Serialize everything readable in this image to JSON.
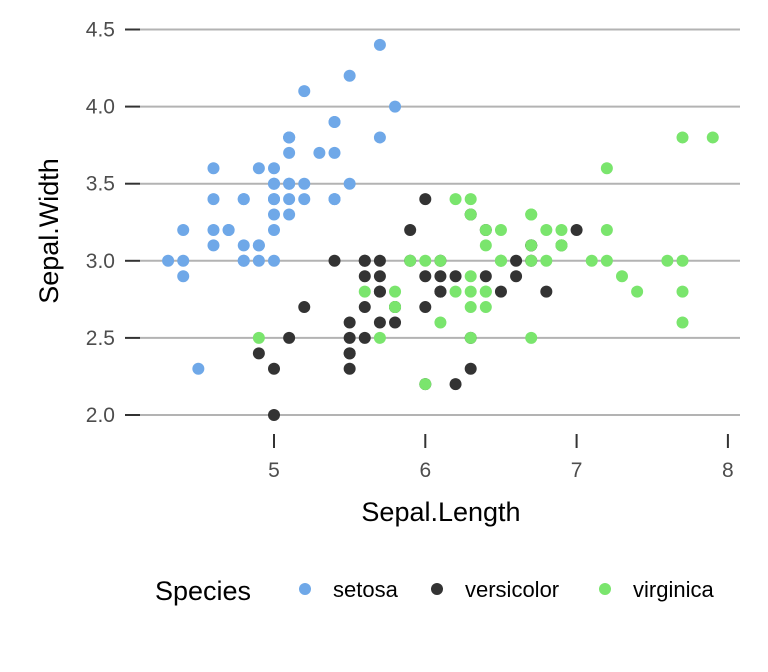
{
  "chart_data": {
    "type": "scatter",
    "title": "",
    "xlabel": "Sepal.Length",
    "ylabel": "Sepal.Width",
    "xlim": [
      4.2,
      8.05
    ],
    "ylim": [
      1.95,
      4.55
    ],
    "xticks": [
      5,
      6,
      7,
      8
    ],
    "yticks": [
      2.0,
      2.5,
      3.0,
      3.5,
      4.0,
      4.5
    ],
    "xtick_labels": [
      "5",
      "6",
      "7",
      "8"
    ],
    "ytick_labels": [
      "2.0",
      "2.5",
      "3.0",
      "3.5",
      "4.0",
      "4.5"
    ],
    "grid": "horizontal-major",
    "legend_position": "bottom",
    "legend_title": "Species",
    "series": [
      {
        "name": "setosa",
        "color": "#6fa8e8",
        "x": [
          5.1,
          4.9,
          4.7,
          4.6,
          5.0,
          5.4,
          4.6,
          5.0,
          4.4,
          4.9,
          5.4,
          4.8,
          4.8,
          4.3,
          5.8,
          5.7,
          5.4,
          5.1,
          5.7,
          5.1,
          5.4,
          5.1,
          4.6,
          5.1,
          4.8,
          5.0,
          5.0,
          5.2,
          5.2,
          4.7,
          4.8,
          5.4,
          5.2,
          5.5,
          4.9,
          5.0,
          5.5,
          4.9,
          4.4,
          5.1,
          5.0,
          4.5,
          4.4,
          5.0,
          5.1,
          4.8,
          5.1,
          4.6,
          5.3,
          5.0
        ],
        "y": [
          3.5,
          3.0,
          3.2,
          3.1,
          3.6,
          3.9,
          3.4,
          3.4,
          2.9,
          3.1,
          3.7,
          3.4,
          3.0,
          3.0,
          4.0,
          4.4,
          3.9,
          3.5,
          3.8,
          3.8,
          3.4,
          3.7,
          3.6,
          3.3,
          3.4,
          3.0,
          3.4,
          3.5,
          3.4,
          3.2,
          3.1,
          3.4,
          4.1,
          4.2,
          3.1,
          3.2,
          3.5,
          3.6,
          3.0,
          3.4,
          3.5,
          2.3,
          3.2,
          3.5,
          3.8,
          3.0,
          3.8,
          3.2,
          3.7,
          3.3
        ]
      },
      {
        "name": "versicolor",
        "color": "#333333",
        "x": [
          7.0,
          6.4,
          6.9,
          5.5,
          6.5,
          5.7,
          6.3,
          4.9,
          6.6,
          5.2,
          5.0,
          5.9,
          6.0,
          6.1,
          5.6,
          6.7,
          5.6,
          5.8,
          6.2,
          5.6,
          5.9,
          6.1,
          6.3,
          6.1,
          6.4,
          6.6,
          6.8,
          6.7,
          6.0,
          5.7,
          5.5,
          5.5,
          5.8,
          6.0,
          5.4,
          6.0,
          6.7,
          6.3,
          5.6,
          5.5,
          5.5,
          6.1,
          5.8,
          5.0,
          5.6,
          5.7,
          5.7,
          6.2,
          5.1,
          5.7
        ],
        "y": [
          3.2,
          3.2,
          3.1,
          2.3,
          2.8,
          2.8,
          3.3,
          2.4,
          2.9,
          2.7,
          2.0,
          3.0,
          2.2,
          2.9,
          2.9,
          3.1,
          3.0,
          2.7,
          2.2,
          2.5,
          3.2,
          2.8,
          2.5,
          2.8,
          2.9,
          3.0,
          2.8,
          3.0,
          2.9,
          2.6,
          2.4,
          2.4,
          2.7,
          2.7,
          3.0,
          3.4,
          3.1,
          2.3,
          3.0,
          2.5,
          2.6,
          3.0,
          2.6,
          2.3,
          2.7,
          3.0,
          2.9,
          2.9,
          2.5,
          2.8
        ]
      },
      {
        "name": "virginica",
        "color": "#7ae56d",
        "x": [
          6.3,
          5.8,
          7.1,
          6.3,
          6.5,
          7.6,
          4.9,
          7.3,
          6.7,
          7.2,
          6.5,
          6.4,
          6.8,
          5.7,
          5.8,
          6.4,
          6.5,
          7.7,
          7.7,
          6.0,
          6.9,
          5.6,
          7.7,
          6.3,
          6.7,
          7.2,
          6.2,
          6.1,
          6.4,
          7.2,
          7.4,
          7.9,
          6.4,
          6.3,
          6.1,
          7.7,
          6.3,
          6.4,
          6.0,
          6.9,
          6.7,
          6.9,
          5.8,
          6.8,
          6.7,
          6.7,
          6.3,
          6.5,
          6.2,
          5.9
        ],
        "y": [
          3.3,
          2.7,
          3.0,
          2.9,
          3.0,
          3.0,
          2.5,
          2.9,
          2.5,
          3.6,
          3.2,
          2.7,
          3.0,
          2.5,
          2.8,
          3.2,
          3.0,
          3.8,
          2.6,
          2.2,
          3.2,
          2.8,
          2.8,
          2.7,
          3.3,
          3.2,
          2.8,
          3.0,
          2.8,
          3.0,
          2.8,
          3.8,
          2.8,
          2.8,
          2.6,
          3.0,
          3.4,
          3.1,
          3.0,
          3.1,
          3.1,
          3.1,
          2.7,
          3.2,
          3.3,
          3.0,
          2.5,
          3.0,
          3.4,
          3.0
        ]
      }
    ]
  }
}
